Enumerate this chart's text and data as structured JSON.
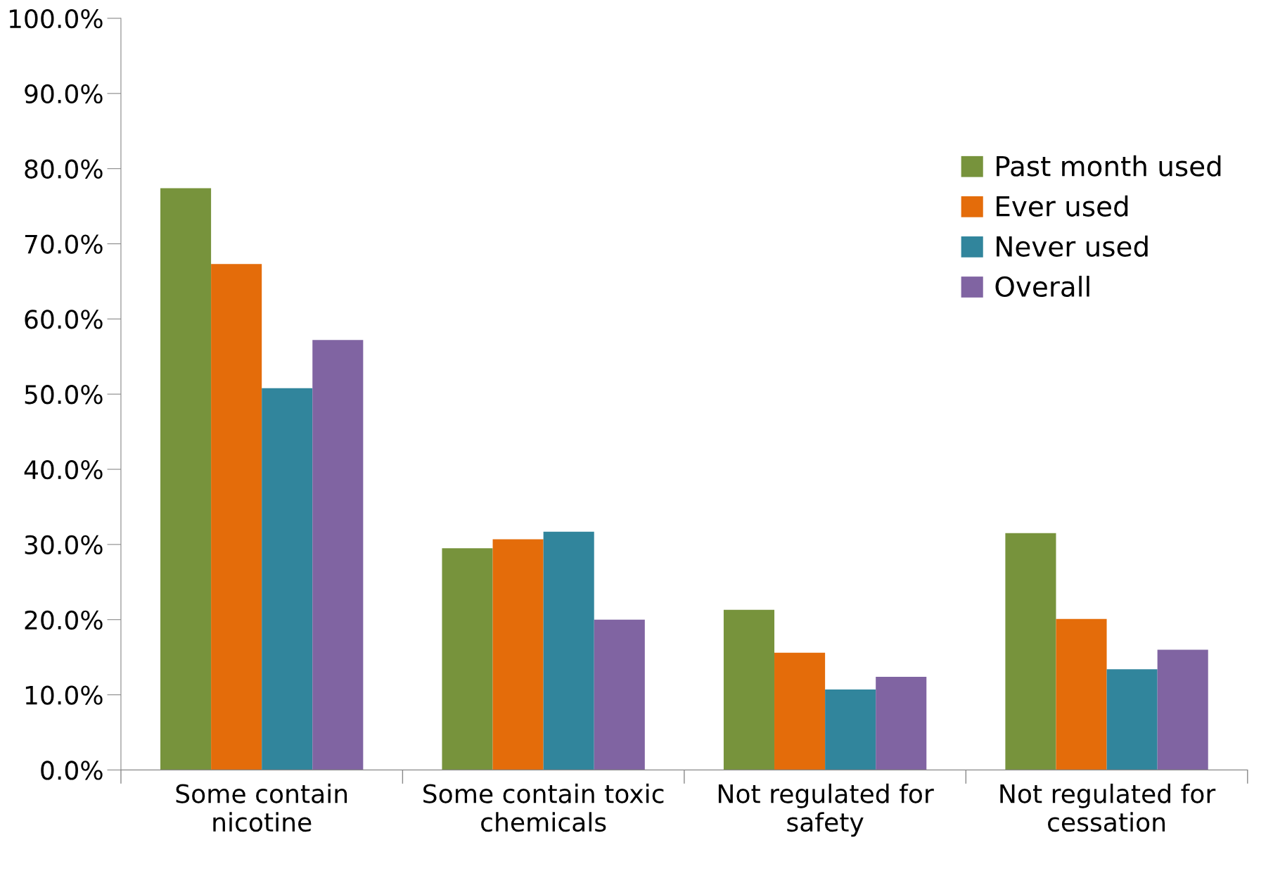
{
  "chart_data": {
    "type": "bar",
    "categories": [
      "Some contain\nnicotine",
      "Some contain toxic\nchemicals",
      "Not regulated for\nsafety",
      "Not regulated for\ncessation"
    ],
    "series": [
      {
        "name": "Past month used",
        "color": "#77933c",
        "values": [
          77.4,
          29.5,
          21.3,
          31.5
        ]
      },
      {
        "name": "Ever used",
        "color": "#e46c0a",
        "values": [
          67.3,
          30.7,
          15.6,
          20.1
        ]
      },
      {
        "name": "Never used",
        "color": "#31859c",
        "values": [
          50.8,
          31.7,
          10.7,
          13.4
        ]
      },
      {
        "name": "Overall",
        "color": "#8064a2",
        "values": [
          57.2,
          20.0,
          12.4,
          16.0
        ]
      }
    ],
    "ylim": [
      0,
      100
    ],
    "yticks": [
      {
        "value": 0,
        "label": "0.0%"
      },
      {
        "value": 10,
        "label": "10.0%"
      },
      {
        "value": 20,
        "label": "20.0%"
      },
      {
        "value": 30,
        "label": "30.0%"
      },
      {
        "value": 40,
        "label": "40.0%"
      },
      {
        "value": 50,
        "label": "50.0%"
      },
      {
        "value": 60,
        "label": "60.0%"
      },
      {
        "value": 70,
        "label": "70.0%"
      },
      {
        "value": 80,
        "label": "80.0%"
      },
      {
        "value": 90,
        "label": "90.0%"
      },
      {
        "value": 100,
        "label": "100.0%"
      }
    ],
    "grid": false,
    "legend": "right"
  }
}
